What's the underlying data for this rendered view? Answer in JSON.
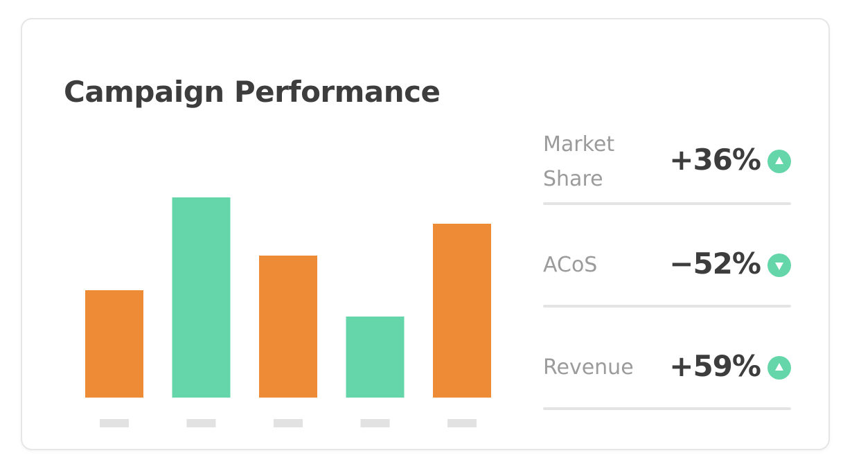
{
  "card": {
    "title": "Campaign Performance"
  },
  "colors": {
    "orange": "#ee8b37",
    "green": "#65d6a9",
    "tick_placeholder": "#e2e2e2",
    "divider": "#e4e4e4",
    "text_dark": "#3d3d3d",
    "text_muted": "#9b9b9b"
  },
  "chart_data": {
    "type": "bar",
    "title": "",
    "xlabel": "",
    "ylabel": "",
    "categories": [
      "",
      "",
      "",
      "",
      ""
    ],
    "values": [
      155,
      289,
      205,
      117,
      251
    ],
    "bar_colors": [
      "#ee8b37",
      "#65d6a9",
      "#ee8b37",
      "#65d6a9",
      "#ee8b37"
    ],
    "ylim": [
      0,
      330
    ],
    "grid": false,
    "legend": "none",
    "tick_labels_placeholder": true
  },
  "metrics": [
    {
      "label": "Market Share",
      "value": "+36%",
      "trend": "up",
      "icon": "triangle-up-icon"
    },
    {
      "label": "ACoS",
      "value": "−52%",
      "trend": "down",
      "icon": "triangle-down-icon"
    },
    {
      "label": "Revenue",
      "value": "+59%",
      "trend": "up",
      "icon": "triangle-up-icon"
    }
  ]
}
